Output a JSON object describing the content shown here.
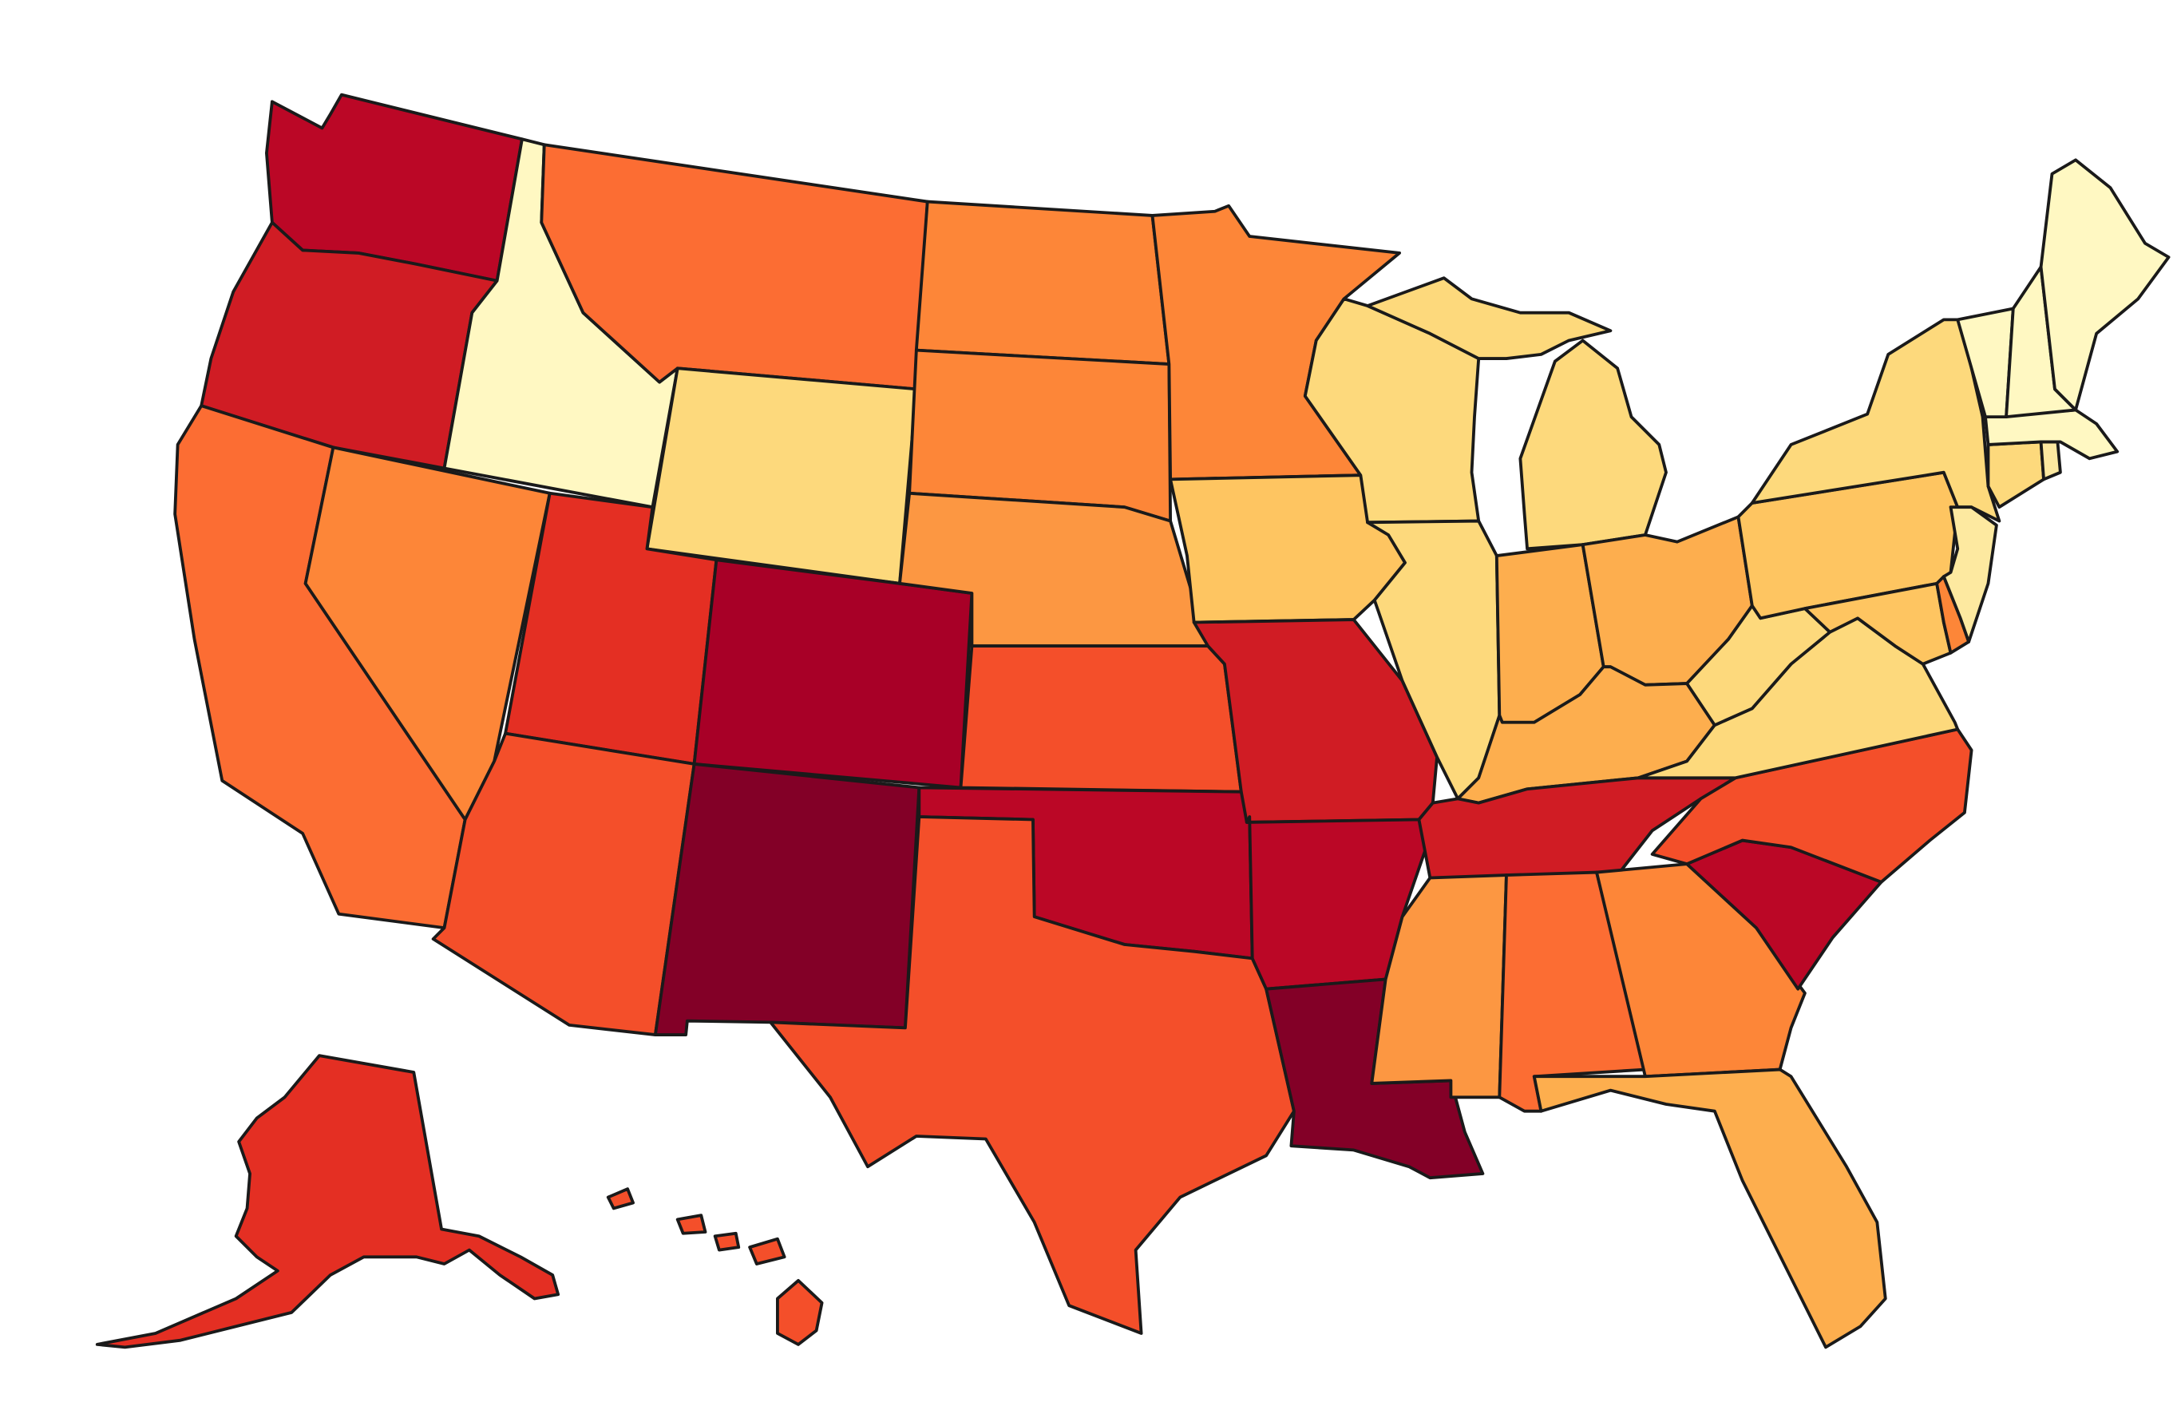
{
  "map": {
    "type": "choropleth",
    "region": "United States",
    "title": "",
    "legend": "",
    "color_scale": {
      "c0": "#fff8c2",
      "c1": "#fde9a0",
      "c2": "#fdd97c",
      "c3": "#fec561",
      "c4": "#fdae4e",
      "c5": "#fc9742",
      "c6": "#fd8638",
      "c7": "#fc6d33",
      "c8": "#f44f2a",
      "c9": "#e42f23",
      "c10": "#d01c24",
      "c11": "#bb0726",
      "c12": "#a80027",
      "c13": "#830027"
    },
    "states": [
      {
        "id": "WA",
        "level": 11
      },
      {
        "id": "OR",
        "level": 10
      },
      {
        "id": "CA",
        "level": 7
      },
      {
        "id": "ID",
        "level": 0
      },
      {
        "id": "NV",
        "level": 6
      },
      {
        "id": "MT",
        "level": 7
      },
      {
        "id": "WY",
        "level": 2
      },
      {
        "id": "UT",
        "level": 9
      },
      {
        "id": "AZ",
        "level": 8
      },
      {
        "id": "CO",
        "level": 12
      },
      {
        "id": "NM",
        "level": 13
      },
      {
        "id": "ND",
        "level": 6
      },
      {
        "id": "SD",
        "level": 6
      },
      {
        "id": "NE",
        "level": 5
      },
      {
        "id": "KS",
        "level": 8
      },
      {
        "id": "OK",
        "level": 11
      },
      {
        "id": "TX",
        "level": 8
      },
      {
        "id": "MN",
        "level": 6
      },
      {
        "id": "IA",
        "level": 3
      },
      {
        "id": "MO",
        "level": 10
      },
      {
        "id": "AR",
        "level": 11
      },
      {
        "id": "LA",
        "level": 13
      },
      {
        "id": "WI",
        "level": 2
      },
      {
        "id": "IL",
        "level": 2
      },
      {
        "id": "MI",
        "level": 2
      },
      {
        "id": "IN",
        "level": 4
      },
      {
        "id": "OH",
        "level": 4
      },
      {
        "id": "KY",
        "level": 4
      },
      {
        "id": "TN",
        "level": 10
      },
      {
        "id": "MS",
        "level": 5
      },
      {
        "id": "AL",
        "level": 7
      },
      {
        "id": "GA",
        "level": 6
      },
      {
        "id": "FL",
        "level": 4
      },
      {
        "id": "SC",
        "level": 11
      },
      {
        "id": "NC",
        "level": 8
      },
      {
        "id": "VA",
        "level": 2
      },
      {
        "id": "WV",
        "level": 2
      },
      {
        "id": "PA",
        "level": 3
      },
      {
        "id": "NY",
        "level": 2
      },
      {
        "id": "MD",
        "level": 3
      },
      {
        "id": "DE",
        "level": 6
      },
      {
        "id": "NJ",
        "level": 1
      },
      {
        "id": "CT",
        "level": 2
      },
      {
        "id": "RI",
        "level": 1
      },
      {
        "id": "MA",
        "level": 0
      },
      {
        "id": "VT",
        "level": 0
      },
      {
        "id": "NH",
        "level": 0
      },
      {
        "id": "ME",
        "level": 0
      },
      {
        "id": "AK",
        "level": 9
      },
      {
        "id": "HI",
        "level": 8
      }
    ]
  }
}
